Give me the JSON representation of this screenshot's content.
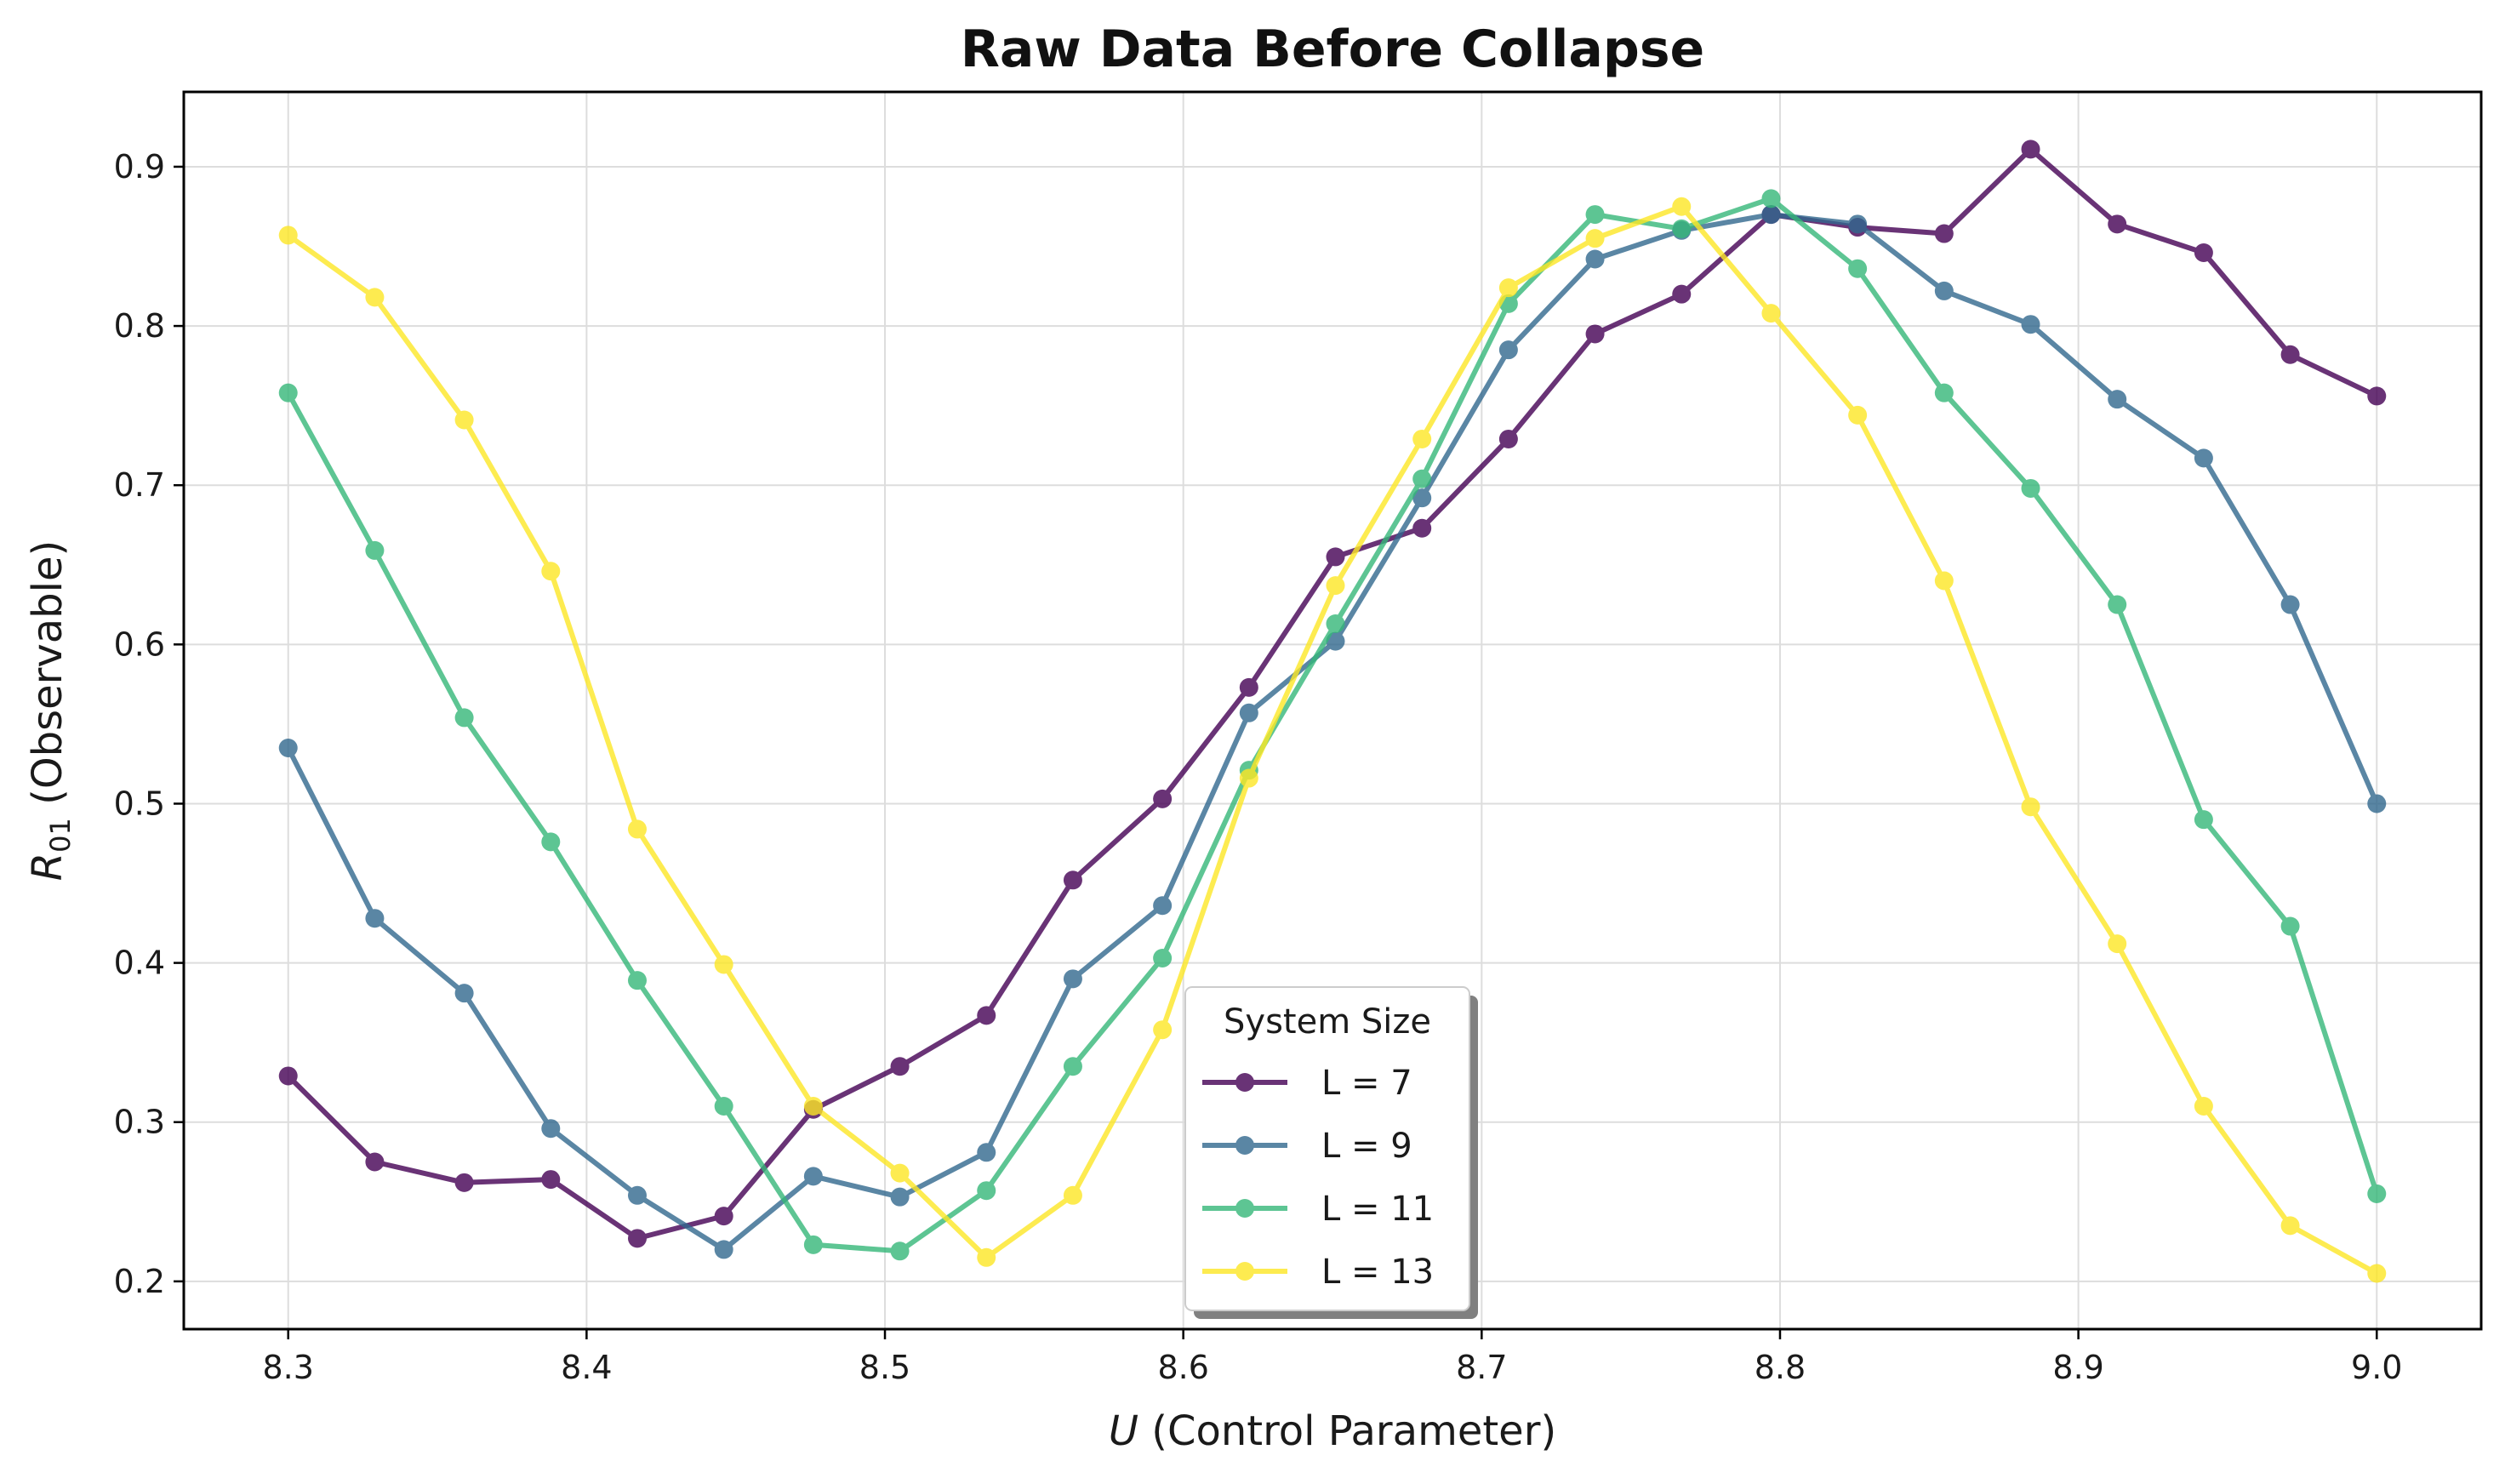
{
  "chart_data": {
    "type": "line",
    "title": "Raw Data Before Collapse",
    "xlabel_var": "U",
    "xlabel_rest": " (Control Parameter)",
    "ylabel_var": "R",
    "ylabel_sub": "01",
    "ylabel_rest": " (Observable)",
    "xlim": [
      8.265,
      9.035
    ],
    "ylim": [
      0.17,
      0.947
    ],
    "xticks": [
      8.3,
      8.4,
      8.5,
      8.6,
      8.7,
      8.8,
      8.9,
      9.0
    ],
    "xtick_labels": [
      "8.3",
      "8.4",
      "8.5",
      "8.6",
      "8.7",
      "8.8",
      "8.9",
      "9.0"
    ],
    "yticks": [
      0.2,
      0.3,
      0.4,
      0.5,
      0.6,
      0.7,
      0.8,
      0.9
    ],
    "ytick_labels": [
      "0.2",
      "0.3",
      "0.4",
      "0.5",
      "0.6",
      "0.7",
      "0.8",
      "0.9"
    ],
    "grid": true,
    "legend_title": "System Size",
    "legend_position": "bottom-center",
    "x": [
      8.3,
      8.329,
      8.359,
      8.388,
      8.417,
      8.446,
      8.476,
      8.505,
      8.534,
      8.563,
      8.593,
      8.622,
      8.651,
      8.68,
      8.709,
      8.738,
      8.767,
      8.797,
      8.826,
      8.855,
      8.884,
      8.913,
      8.942,
      8.971,
      9.0
    ],
    "series": [
      {
        "name": "L = 7",
        "color": "#440154",
        "values": [
          0.329,
          0.275,
          0.262,
          0.264,
          0.227,
          0.241,
          0.308,
          0.335,
          0.367,
          0.452,
          0.503,
          0.573,
          0.655,
          0.673,
          0.729,
          0.795,
          0.82,
          0.87,
          0.862,
          0.858,
          0.911,
          0.864,
          0.846,
          0.782,
          0.756
        ]
      },
      {
        "name": "L = 9",
        "color": "#31688e",
        "values": [
          0.535,
          0.428,
          0.381,
          0.296,
          0.254,
          0.22,
          0.266,
          0.253,
          0.281,
          0.39,
          0.436,
          0.557,
          0.602,
          0.692,
          0.785,
          0.842,
          0.86,
          0.87,
          0.864,
          0.822,
          0.801,
          0.754,
          0.717,
          0.625,
          0.5
        ]
      },
      {
        "name": "L = 11",
        "color": "#35b779",
        "values": [
          0.758,
          0.659,
          0.554,
          0.476,
          0.389,
          0.31,
          0.223,
          0.219,
          0.257,
          0.335,
          0.403,
          0.521,
          0.613,
          0.704,
          0.814,
          0.87,
          0.861,
          0.88,
          0.836,
          0.758,
          0.698,
          0.625,
          0.49,
          0.423,
          0.255
        ]
      },
      {
        "name": "L = 13",
        "color": "#fde725",
        "values": [
          0.857,
          0.818,
          0.741,
          0.646,
          0.484,
          0.399,
          0.31,
          0.268,
          0.215,
          0.254,
          0.358,
          0.516,
          0.637,
          0.729,
          0.824,
          0.855,
          0.875,
          0.808,
          0.744,
          0.64,
          0.498,
          0.412,
          0.31,
          0.235,
          0.205
        ]
      }
    ]
  }
}
